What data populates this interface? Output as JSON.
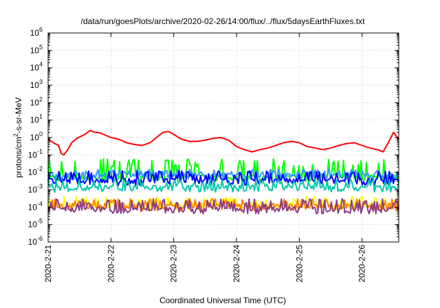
{
  "chart_data": {
    "type": "line",
    "title": "/data/run/goesPlots/archive/2020-02-26/14:00/flux/../flux/5daysEarthFluxes.txt",
    "xlabel": "Coordinated Universal Time (UTC)",
    "ylabel": "protons/cm²-s-sr-MeV",
    "ylabel_parts": {
      "base": "protons/cm",
      "sup": "2",
      "rest": "-s-sr-MeV"
    },
    "x_range_days": [
      "2020-02-21",
      "2020-02-26T14:00"
    ],
    "x_ticks": [
      "2020-2-21",
      "2020-2-22",
      "2020-2-23",
      "2020-2-24",
      "2020-2-25",
      "2020-2-26"
    ],
    "y_scale": "log",
    "ylim": [
      1e-06,
      1000000.0
    ],
    "y_ticks": [
      {
        "base": "10",
        "exp": "-6"
      },
      {
        "base": "10",
        "exp": "-5"
      },
      {
        "base": "10",
        "exp": "-4"
      },
      {
        "base": "10",
        "exp": "-3"
      },
      {
        "base": "10",
        "exp": "-2"
      },
      {
        "base": "10",
        "exp": "-1"
      },
      {
        "base": "10",
        "exp": "0"
      },
      {
        "base": "10",
        "exp": "1"
      },
      {
        "base": "10",
        "exp": "2"
      },
      {
        "base": "10",
        "exp": "3"
      },
      {
        "base": "10",
        "exp": "4"
      },
      {
        "base": "10",
        "exp": "5"
      },
      {
        "base": "10",
        "exp": "6"
      }
    ],
    "grid": true,
    "series": [
      {
        "color": "#ff0000",
        "baseline": 0.3,
        "points": [
          [
            "2020-02-21T00:00",
            0.8
          ],
          [
            "2020-02-21T02:00",
            0.5
          ],
          [
            "2020-02-21T04:00",
            0.35
          ],
          [
            "2020-02-21T05:00",
            0.12
          ],
          [
            "2020-02-21T06:00",
            0.1
          ],
          [
            "2020-02-21T07:30",
            0.2
          ],
          [
            "2020-02-21T09:00",
            0.5
          ],
          [
            "2020-02-21T11:00",
            0.9
          ],
          [
            "2020-02-21T14:00",
            1.5
          ],
          [
            "2020-02-21T16:00",
            2.5
          ],
          [
            "2020-02-21T18:00",
            2.0
          ],
          [
            "2020-02-21T20:00",
            1.8
          ],
          [
            "2020-02-22T00:00",
            1.0
          ],
          [
            "2020-02-22T03:00",
            0.8
          ],
          [
            "2020-02-22T06:00",
            0.5
          ],
          [
            "2020-02-22T09:00",
            0.4
          ],
          [
            "2020-02-22T12:00",
            0.35
          ],
          [
            "2020-02-22T15:00",
            0.5
          ],
          [
            "2020-02-22T18:00",
            1.2
          ],
          [
            "2020-02-22T20:00",
            2.0
          ],
          [
            "2020-02-22T22:00",
            2.2
          ],
          [
            "2020-02-23T00:00",
            1.5
          ],
          [
            "2020-02-23T03:00",
            0.8
          ],
          [
            "2020-02-23T06:00",
            0.6
          ],
          [
            "2020-02-23T09:00",
            0.6
          ],
          [
            "2020-02-23T12:00",
            0.7
          ],
          [
            "2020-02-23T15:00",
            0.9
          ],
          [
            "2020-02-23T18:00",
            1.0
          ],
          [
            "2020-02-23T21:00",
            0.7
          ],
          [
            "2020-02-24T00:00",
            0.3
          ],
          [
            "2020-02-24T03:00",
            0.2
          ],
          [
            "2020-02-24T06:00",
            0.15
          ],
          [
            "2020-02-24T09:00",
            0.2
          ],
          [
            "2020-02-24T12:00",
            0.25
          ],
          [
            "2020-02-24T15:00",
            0.35
          ],
          [
            "2020-02-24T18:00",
            0.5
          ],
          [
            "2020-02-24T21:00",
            0.6
          ],
          [
            "2020-02-25T00:00",
            0.5
          ],
          [
            "2020-02-25T03:00",
            0.3
          ],
          [
            "2020-02-25T06:00",
            0.25
          ],
          [
            "2020-02-25T09:00",
            0.2
          ],
          [
            "2020-02-25T12:00",
            0.25
          ],
          [
            "2020-02-25T15:00",
            0.35
          ],
          [
            "2020-02-25T18:00",
            0.45
          ],
          [
            "2020-02-25T21:00",
            0.5
          ],
          [
            "2020-02-26T00:00",
            0.35
          ],
          [
            "2020-02-26T03:00",
            0.25
          ],
          [
            "2020-02-26T06:00",
            0.2
          ],
          [
            "2020-02-26T08:00",
            0.15
          ],
          [
            "2020-02-26T10:00",
            0.5
          ],
          [
            "2020-02-26T12:00",
            2.0
          ],
          [
            "2020-02-26T14:00",
            0.8
          ]
        ]
      },
      {
        "color": "#00ff00",
        "baseline": 0.005,
        "spike": 0.06
      },
      {
        "color": "#3399ff",
        "baseline": 0.006,
        "spike": 0.015
      },
      {
        "color": "#0000ff",
        "baseline": 0.003,
        "spike": 0.012
      },
      {
        "color": "#00c8aa",
        "baseline": 0.0012,
        "spike": 0.004
      },
      {
        "color": "#ffff00",
        "baseline": 0.00012,
        "spike": 0.0004
      },
      {
        "color": "#ff8000",
        "baseline": 0.0001,
        "spike": 0.0003
      },
      {
        "color": "#8b3a8b",
        "baseline": 7e-05,
        "spike": 0.0003
      }
    ]
  }
}
